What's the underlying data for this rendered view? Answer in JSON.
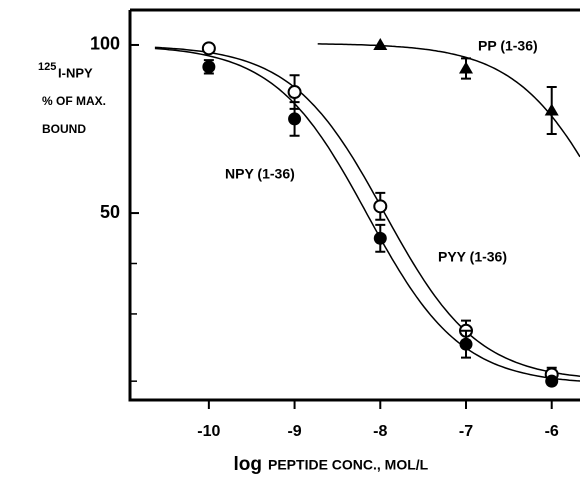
{
  "chart_data": {
    "type": "scatter",
    "xlabel_prefix": "log",
    "xlabel": "PEPTIDE CONC., MOL/L",
    "ylabel_superscript": "125",
    "ylabel_lines": [
      "I-NPY",
      "% OF MAX.",
      "BOUND"
    ],
    "xlim": [
      -10.92,
      -5.67
    ],
    "xticks": [
      -10,
      -9,
      -8,
      -7,
      -6
    ],
    "ylim": [
      -5.6,
      110.4
    ],
    "yticks": [
      50,
      100
    ],
    "y_minor_ticks": [
      0,
      20,
      35
    ],
    "series": [
      {
        "name": "PYY (1-36)",
        "color": "#000000",
        "marker": "open-circle",
        "x": [
          -10,
          -9,
          -8,
          -7,
          -6
        ],
        "values": [
          99,
          86,
          52,
          15,
          2
        ],
        "errors": [
          1,
          5,
          4,
          3,
          2
        ],
        "fit": {
          "top": 100,
          "bottom": 0,
          "log_ec50": -7.95,
          "slope": 0.8,
          "from": -10.63
        }
      },
      {
        "name": "NPY (1-36)",
        "color": "#000000",
        "marker": "filled-circle",
        "x": [
          -10,
          -9,
          -8,
          -7,
          -6
        ],
        "values": [
          93.5,
          78,
          42.5,
          11,
          0
        ],
        "errors": [
          2,
          5,
          4,
          4,
          1
        ],
        "fit": {
          "top": 100,
          "bottom": -1,
          "log_ec50": -8.15,
          "slope": 0.8,
          "from": -10.63
        }
      },
      {
        "name": "PP (1-36)",
        "color": "#000000",
        "marker": "filled-triangle",
        "x": [
          -8,
          -7,
          -6
        ],
        "values": [
          100,
          93,
          80.5
        ],
        "errors": [
          0,
          3,
          7
        ],
        "fit": {
          "top": 100.5,
          "bottom": 0,
          "log_ec50": -5.3,
          "slope": 0.8,
          "from": -8.73
        }
      }
    ]
  }
}
